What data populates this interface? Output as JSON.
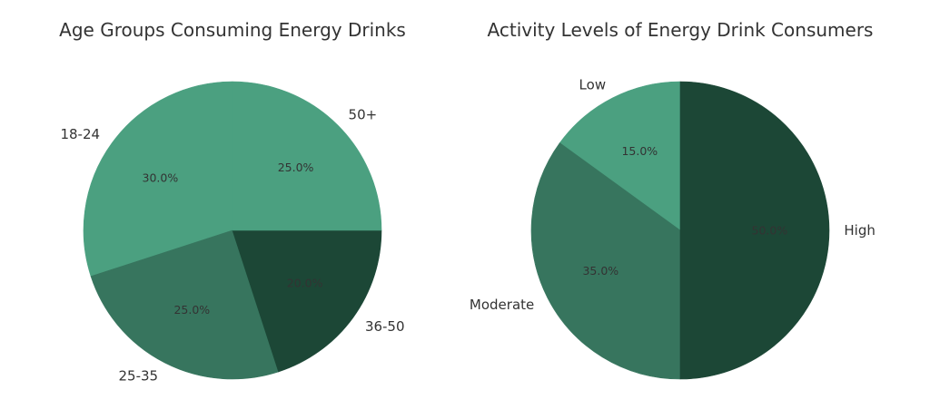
{
  "chart_data": [
    {
      "type": "pie",
      "title": "Age Groups Consuming Energy Drinks",
      "start_angle_deg": 90,
      "direction": "counterclockwise",
      "slices": [
        {
          "label": "18-24",
          "value": 30.0,
          "pct_label": "30.0%",
          "color": "#4ba080"
        },
        {
          "label": "25-35",
          "value": 25.0,
          "pct_label": "25.0%",
          "color": "#37755e"
        },
        {
          "label": "36-50",
          "value": 20.0,
          "pct_label": "20.0%",
          "color": "#1c4736"
        },
        {
          "label": "50+",
          "value": 25.0,
          "pct_label": "25.0%",
          "color": "#4ba080"
        }
      ]
    },
    {
      "type": "pie",
      "title": "Activity Levels of Energy Drink Consumers",
      "start_angle_deg": 90,
      "direction": "counterclockwise",
      "slices": [
        {
          "label": "Low",
          "value": 15.0,
          "pct_label": "15.0%",
          "color": "#4ba080"
        },
        {
          "label": "Moderate",
          "value": 35.0,
          "pct_label": "35.0%",
          "color": "#37755e"
        },
        {
          "label": "High",
          "value": 50.0,
          "pct_label": "50.0%",
          "color": "#1c4736"
        }
      ]
    }
  ]
}
